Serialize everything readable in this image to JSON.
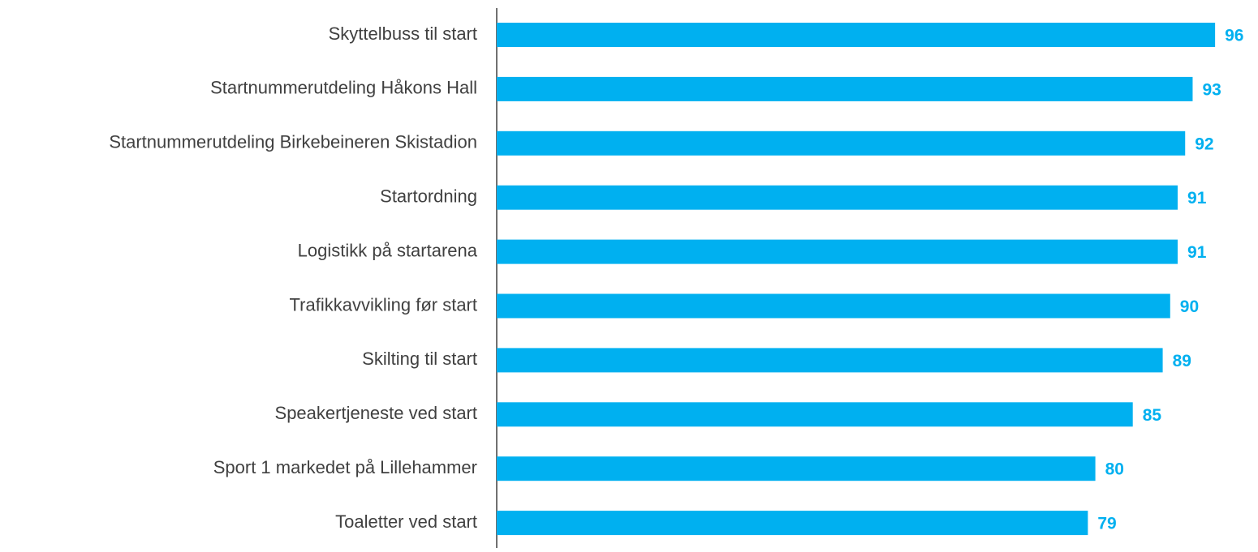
{
  "chart_data": {
    "type": "bar",
    "orientation": "horizontal",
    "categories": [
      "Skyttelbuss til start",
      "Startnummerutdeling Håkons Hall",
      "Startnummerutdeling Birkebeineren Skistadion",
      "Startordning",
      "Logistikk på startarena",
      "Trafikkavvikling før start",
      "Skilting til start",
      "Speakertjeneste ved start",
      "Sport 1 markedet på Lillehammer",
      "Toaletter ved start"
    ],
    "values": [
      96,
      93,
      92,
      91,
      91,
      90,
      89,
      85,
      80,
      79
    ],
    "color": "#00b0f0",
    "xlim": [
      0,
      100
    ]
  }
}
